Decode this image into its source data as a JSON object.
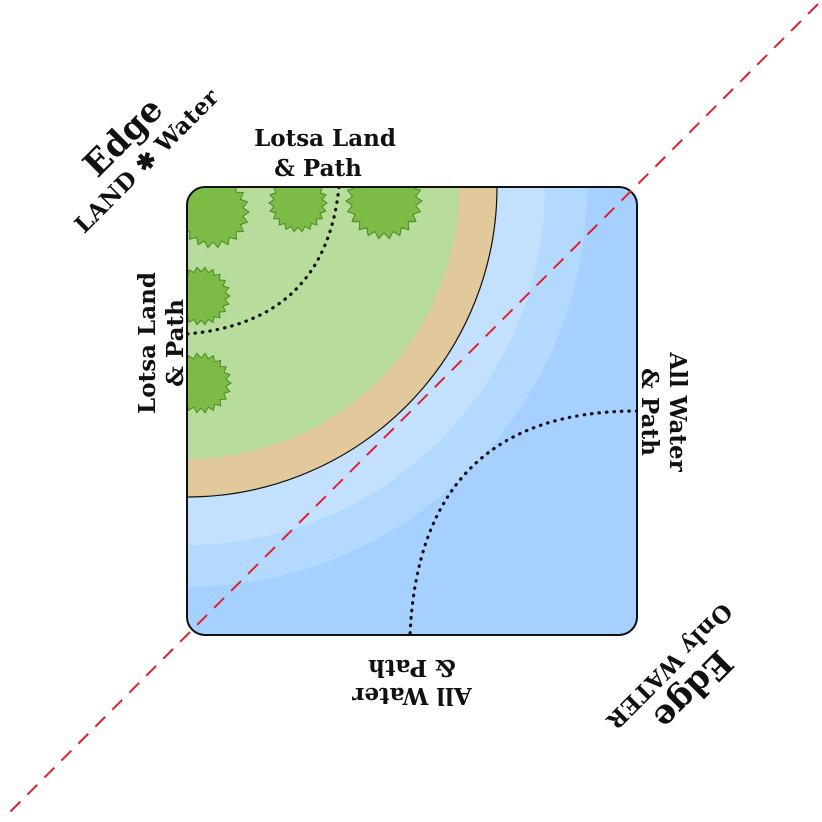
{
  "colors": {
    "background": "#ffffff",
    "land": "#b7dc9b",
    "sand": "#e2c99b",
    "shallow_water": "#c3e1ff",
    "mid_water": "#b3d9ff",
    "deep_water": "#a6d0ff",
    "tree_fill": "#7dbb47",
    "tree_stroke": "#4a8a22",
    "diagonal": "#e0202a",
    "outline": "#111111",
    "path": "#111111"
  },
  "icons": {
    "tree": "tree-icon"
  },
  "labels": {
    "top_left_edge_title": "Edge",
    "top_left_edge_subtitle": "LAND ✱ Water",
    "bottom_right_edge_title": "Edge",
    "bottom_right_edge_subtitle": "Only WATER",
    "top_side_line1": "Lotsa Land",
    "top_side_line2": "& Path",
    "left_side_line1": "Lotsa Land",
    "left_side_line2": "& Path",
    "right_side_line1": "All Water",
    "right_side_line2": "& Path",
    "bottom_side_line1": "All Water",
    "bottom_side_line2": "& Path"
  }
}
